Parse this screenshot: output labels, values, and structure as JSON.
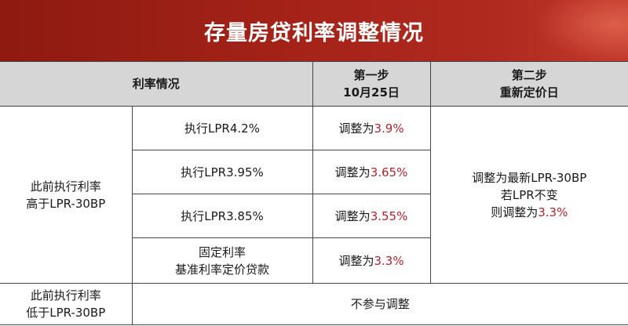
{
  "title": "存量房贷利率调整情况",
  "header": {
    "col1": "利率情况",
    "col2_line1": "第一步",
    "col2_line2": "10月25日",
    "col3_line1": "第二步",
    "col3_line2": "重新定价日"
  },
  "group_above": {
    "label_line1": "此前执行利率",
    "label_line2": "高于LPR-30BP",
    "rows": [
      {
        "case_line1": "执行LPR4.2%",
        "case_line2": "",
        "adjust_prefix": "调整为",
        "adjust_rate": "3.9%"
      },
      {
        "case_line1": "执行LPR3.95%",
        "case_line2": "",
        "adjust_prefix": "调整为",
        "adjust_rate": "3.65%"
      },
      {
        "case_line1": "执行LPR3.85%",
        "case_line2": "",
        "adjust_prefix": "调整为",
        "adjust_rate": "3.55%"
      },
      {
        "case_line1": "固定利率",
        "case_line2": "基准利率定价贷款",
        "adjust_prefix": "调整为",
        "adjust_rate": "3.3%"
      }
    ],
    "step2_line1": "调整为最新LPR-30BP",
    "step2_line2": "若LPR不变",
    "step2_line3_prefix": "则调整为",
    "step2_line3_rate": "3.3%"
  },
  "group_below": {
    "label_line1": "此前执行利率",
    "label_line2": "低于LPR-30BP",
    "note": "不参与调整"
  },
  "colors": {
    "banner": "#a8241a",
    "header_bg": "#d6d6d6",
    "rate_red": "#b0242b"
  }
}
